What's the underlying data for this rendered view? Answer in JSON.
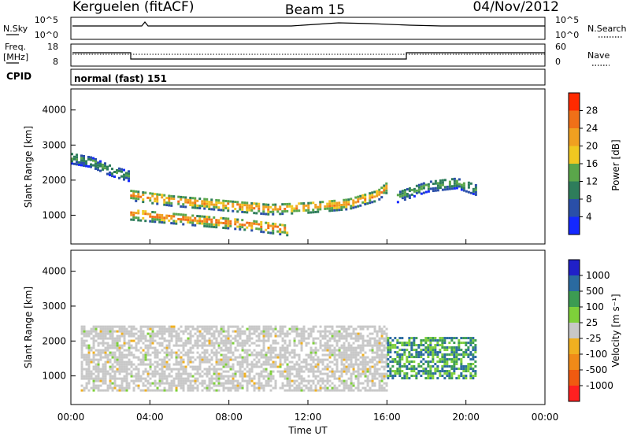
{
  "header": {
    "station": "Kerguelen (fitACF)",
    "beam": "Beam 15",
    "date": "04/Nov/2012"
  },
  "control_panels": {
    "nsky_label": "N.Sky",
    "nsearch_label": "N.Search",
    "freq_label_1": "Freq.",
    "freq_label_2": "[MHz]",
    "nave_label": "Nave",
    "cpid_label": "CPID",
    "cpid_value": "normal (fast) 151",
    "noise_ticks_left": [
      "10^5",
      "10^0"
    ],
    "noise_ticks_right": [
      "10^5",
      "10^0"
    ],
    "freq_ticks": [
      "18",
      "8"
    ],
    "nave_ticks": [
      "60",
      "0"
    ]
  },
  "colors": {
    "power_scale": [
      "#1428ff",
      "#2a4fa8",
      "#2e7d5b",
      "#5aa64a",
      "#f0c820",
      "#f0a020",
      "#f07018",
      "#ff2a00"
    ],
    "velocity_scale": [
      "#ff2020",
      "#f05a10",
      "#f08a18",
      "#f0b020",
      "#c8c8c8",
      "#7ed03a",
      "#3c9c52",
      "#2a6aa0",
      "#2020c8"
    ]
  },
  "chart_data": [
    {
      "type": "heatmap",
      "panel": "power",
      "xlabel": "",
      "ylabel": "Slant Range [km]",
      "x_ticks": [
        "00:00",
        "04:00",
        "08:00",
        "12:00",
        "16:00",
        "20:00",
        "00:00"
      ],
      "y_ticks": [
        "1000",
        "2000",
        "3000",
        "4000"
      ],
      "xlim_hours": [
        0,
        24
      ],
      "ylim_km": [
        180,
        4600
      ],
      "colorbar": {
        "label": "Power [dB]",
        "ticks": [
          "4",
          "8",
          "12",
          "16",
          "20",
          "24",
          "28"
        ],
        "range": [
          0,
          30
        ]
      },
      "features": [
        {
          "name": "upper track",
          "t": [
            0.0,
            1.0,
            2.0,
            2.9
          ],
          "range_km": [
            2600,
            2500,
            2250,
            2100
          ],
          "value": 12
        },
        {
          "name": "main band",
          "t": [
            3.0,
            5.0,
            8.0,
            10.0,
            12.0,
            14.0,
            15.5,
            16.0
          ],
          "range_km": [
            1550,
            1400,
            1250,
            1150,
            1200,
            1300,
            1550,
            1800
          ],
          "value": 24
        },
        {
          "name": "lower band",
          "t": [
            3.0,
            6.0,
            9.0,
            11.0
          ],
          "range_km": [
            1000,
            850,
            700,
            550
          ],
          "value": 26
        },
        {
          "name": "evening patch",
          "t": [
            16.5,
            18.0,
            19.5,
            20.5
          ],
          "range_km": [
            1500,
            1800,
            1900,
            1700
          ],
          "value": 14
        }
      ]
    },
    {
      "type": "heatmap",
      "panel": "velocity",
      "xlabel": "Time UT",
      "ylabel": "Slant Range [km]",
      "x_ticks": [
        "00:00",
        "04:00",
        "08:00",
        "12:00",
        "16:00",
        "20:00",
        "00:00"
      ],
      "y_ticks": [
        "1000",
        "2000",
        "3000",
        "4000"
      ],
      "xlim_hours": [
        0,
        24
      ],
      "ylim_km": [
        180,
        4600
      ],
      "colorbar": {
        "label": "Velocity [m s⁻¹]",
        "ticks": [
          "-1000",
          "-500",
          "-100",
          "-25",
          "25",
          "100",
          "500",
          "1000"
        ]
      },
      "features": [
        {
          "name": "ground scatter",
          "t_range": [
            0.5,
            16.0
          ],
          "range_km": [
            550,
            2400
          ],
          "value": 0
        },
        {
          "name": "ionospheric scatter",
          "t_range": [
            16.0,
            20.5
          ],
          "range_km": [
            900,
            2100
          ],
          "value": 200
        }
      ]
    }
  ]
}
